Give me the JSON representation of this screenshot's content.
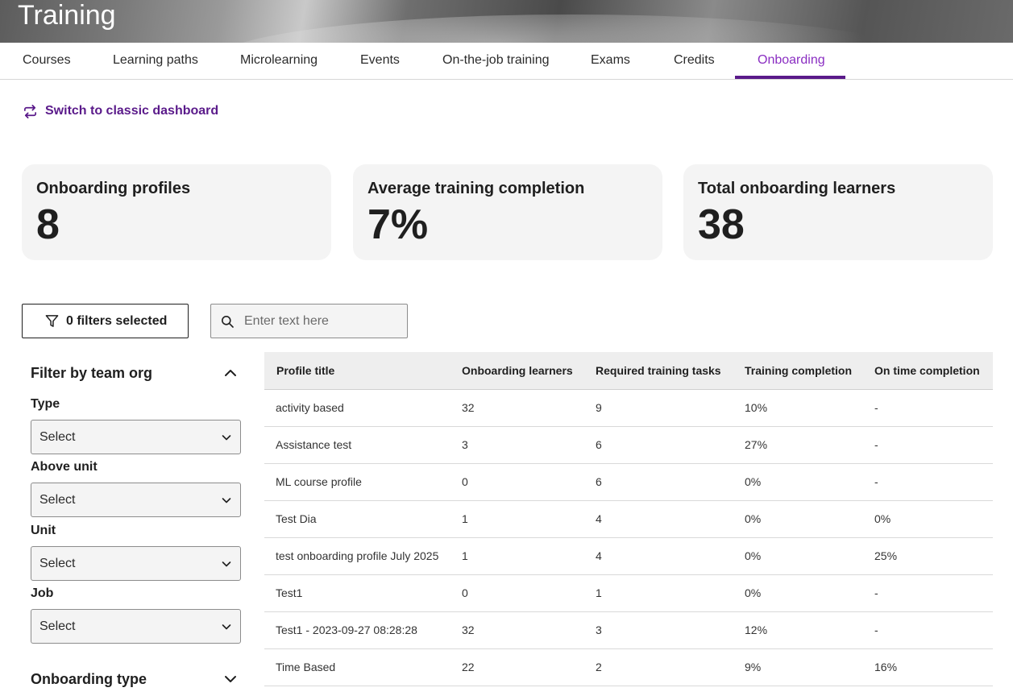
{
  "app": {
    "title": "Training"
  },
  "tabs": [
    {
      "label": "Courses"
    },
    {
      "label": "Learning paths"
    },
    {
      "label": "Microlearning"
    },
    {
      "label": "Events"
    },
    {
      "label": "On-the-job training"
    },
    {
      "label": "Exams"
    },
    {
      "label": "Credits"
    },
    {
      "label": "Onboarding"
    }
  ],
  "active_tab": "Onboarding",
  "switch_link": {
    "label": "Switch to classic dashboard",
    "icon": "switch-arrows-icon"
  },
  "stats": [
    {
      "title": "Onboarding profiles",
      "value": "8"
    },
    {
      "title": "Average training completion",
      "value": "7%"
    },
    {
      "title": "Total onboarding learners",
      "value": "38"
    }
  ],
  "filters": {
    "button_label": "0 filters selected",
    "icon": "funnel-icon"
  },
  "search": {
    "placeholder": "Enter text here",
    "value": "",
    "icon": "search-icon"
  },
  "sidebar": {
    "section_title": "Filter by team org",
    "fields": [
      {
        "label": "Type",
        "value": "Select"
      },
      {
        "label": "Above unit",
        "value": "Select"
      },
      {
        "label": "Unit",
        "value": "Select"
      },
      {
        "label": "Job",
        "value": "Select"
      }
    ],
    "section2_title": "Onboarding type"
  },
  "table": {
    "columns": [
      "Profile title",
      "Onboarding learners",
      "Required training tasks",
      "Training completion",
      "On time completion"
    ],
    "rows": [
      [
        "activity based",
        "32",
        "9",
        "10%",
        "-"
      ],
      [
        "Assistance test",
        "3",
        "6",
        "27%",
        "-"
      ],
      [
        "ML course profile",
        "0",
        "6",
        "0%",
        "-"
      ],
      [
        "Test Dia",
        "1",
        "4",
        "0%",
        "0%"
      ],
      [
        "test onboarding profile July 2025",
        "1",
        "4",
        "0%",
        "25%"
      ],
      [
        "Test1",
        "0",
        "1",
        "0%",
        "-"
      ],
      [
        "Test1 - 2023-09-27 08:28:28",
        "32",
        "3",
        "12%",
        "-"
      ],
      [
        "Time Based",
        "22",
        "2",
        "9%",
        "16%"
      ]
    ]
  },
  "colors": {
    "accent": "#5a1a8a",
    "active_tab_text": "#8a2ec2",
    "card_bg": "#f4f4f4"
  }
}
